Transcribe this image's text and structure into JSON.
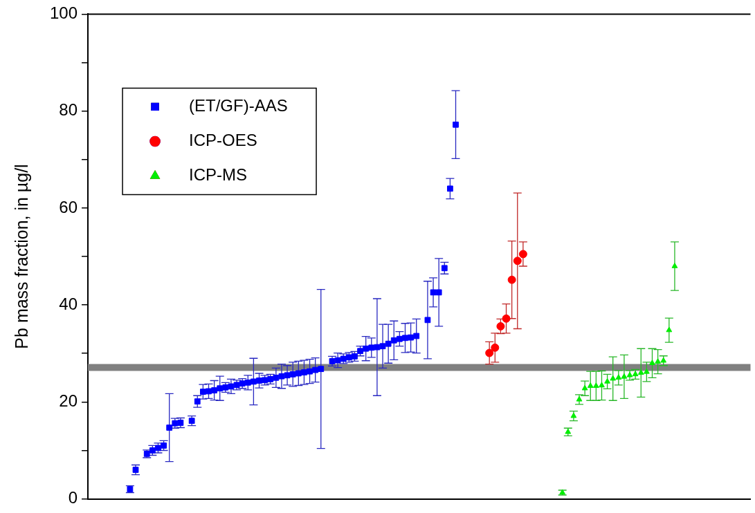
{
  "chart_data": {
    "type": "scatter",
    "ylabel": "Pb mass fraction, in µg/l",
    "categories": [
      null,
      null,
      null,
      null,
      null,
      null,
      null,
      null,
      null,
      null,
      null,
      null,
      null,
      null,
      null,
      null,
      null,
      null,
      null,
      null,
      null,
      null,
      null,
      null,
      null,
      null,
      null,
      null,
      null,
      null,
      null,
      null,
      null,
      null,
      null,
      null,
      null,
      null,
      null,
      null,
      null,
      null,
      null,
      null,
      null,
      null,
      null,
      null,
      null,
      null,
      null,
      null,
      null,
      null,
      null,
      null,
      null,
      null,
      null,
      null,
      null,
      null,
      null,
      null,
      null,
      null,
      null,
      null,
      null,
      null,
      null,
      null,
      null,
      null,
      null,
      null,
      null,
      null,
      null,
      null,
      null,
      null,
      null,
      null,
      null,
      null,
      null,
      null,
      null,
      null,
      null,
      null,
      null,
      null,
      null,
      null,
      null,
      null,
      null,
      null,
      null,
      null,
      null,
      null,
      null,
      null,
      null,
      null,
      null,
      null,
      null,
      null,
      null,
      null,
      null,
      null,
      null,
      null
    ],
    "series": [
      {
        "name": "(ET/GF)-AAS",
        "color": "#0000ff",
        "marker": "square",
        "values": [
          null,
          null,
          null,
          null,
          null,
          null,
          null,
          2.0,
          6.0,
          null,
          9.3,
          10.0,
          10.5,
          11.0,
          14.7,
          15.6,
          15.7,
          null,
          16.1,
          20.1,
          22.1,
          22.2,
          22.4,
          22.8,
          23.0,
          23.2,
          23.5,
          23.8,
          24.0,
          24.2,
          24.4,
          24.5,
          24.7,
          25.0,
          25.3,
          25.5,
          25.7,
          25.9,
          26.1,
          26.3,
          26.6,
          26.8,
          null,
          28.4,
          28.6,
          28.9,
          29.2,
          29.4,
          30.5,
          31.0,
          31.2,
          31.3,
          31.5,
          32.0,
          32.7,
          33.0,
          33.2,
          33.3,
          33.6,
          null,
          36.9,
          42.6,
          42.6,
          47.6,
          64.0,
          77.2,
          null,
          null,
          null,
          null,
          null,
          null,
          null,
          null,
          null,
          null,
          null,
          null,
          null,
          null,
          null,
          null,
          null,
          null,
          null,
          null,
          null,
          null,
          null,
          null,
          null,
          null,
          null,
          null,
          null,
          null,
          null,
          null,
          null,
          null,
          null,
          null,
          null,
          null,
          null,
          null,
          null,
          null,
          null,
          null,
          null,
          null,
          null,
          null,
          null,
          null,
          null,
          null
        ],
        "errors": [
          null,
          null,
          null,
          null,
          null,
          null,
          null,
          0.7,
          1,
          null,
          0.8,
          1,
          1,
          1,
          7,
          1,
          1,
          null,
          1,
          1.2,
          1.5,
          1.5,
          2,
          2.5,
          1,
          1.5,
          1,
          1,
          1.5,
          4.8,
          1.5,
          1,
          1,
          2,
          2.5,
          2,
          2.5,
          2.5,
          2.5,
          2.5,
          2.5,
          16.4,
          null,
          1,
          1.5,
          1,
          1,
          1,
          1,
          2.5,
          2,
          10,
          4.5,
          4,
          4,
          1.5,
          3,
          3,
          3.5,
          null,
          8,
          3,
          7,
          1.2,
          2.1,
          7,
          null,
          null,
          null,
          null,
          null,
          null,
          null,
          null,
          null,
          null,
          null,
          null,
          null,
          null,
          null,
          null,
          null,
          null,
          null,
          null,
          null,
          null,
          null,
          null,
          null,
          null,
          null,
          null,
          null,
          null,
          null,
          null,
          null,
          null,
          null,
          null,
          null,
          null,
          null,
          null,
          null,
          null,
          null,
          null,
          null,
          null,
          null,
          null,
          null,
          null,
          null,
          null
        ]
      },
      {
        "name": "ICP-OES",
        "color": "#ff0000",
        "marker": "circle",
        "values": [
          null,
          null,
          null,
          null,
          null,
          null,
          null,
          null,
          null,
          null,
          null,
          null,
          null,
          null,
          null,
          null,
          null,
          null,
          null,
          null,
          null,
          null,
          null,
          null,
          null,
          null,
          null,
          null,
          null,
          null,
          null,
          null,
          null,
          null,
          null,
          null,
          null,
          null,
          null,
          null,
          null,
          null,
          null,
          null,
          null,
          null,
          null,
          null,
          null,
          null,
          null,
          null,
          null,
          null,
          null,
          null,
          null,
          null,
          null,
          null,
          null,
          null,
          null,
          null,
          null,
          null,
          null,
          null,
          null,
          null,
          null,
          30.1,
          31.2,
          35.6,
          37.2,
          45.2,
          49.1,
          50.5,
          null,
          null,
          null,
          null,
          null,
          null,
          null,
          null,
          null,
          null,
          null,
          null,
          null,
          null,
          null,
          null,
          null,
          null,
          null,
          null,
          null,
          null,
          null,
          null,
          null,
          null,
          null,
          null,
          null,
          null,
          null,
          null,
          null,
          null,
          null,
          null,
          null,
          null,
          null,
          null
        ],
        "errors": [
          null,
          null,
          null,
          null,
          null,
          null,
          null,
          null,
          null,
          null,
          null,
          null,
          null,
          null,
          null,
          null,
          null,
          null,
          null,
          null,
          null,
          null,
          null,
          null,
          null,
          null,
          null,
          null,
          null,
          null,
          null,
          null,
          null,
          null,
          null,
          null,
          null,
          null,
          null,
          null,
          null,
          null,
          null,
          null,
          null,
          null,
          null,
          null,
          null,
          null,
          null,
          null,
          null,
          null,
          null,
          null,
          null,
          null,
          null,
          null,
          null,
          null,
          null,
          null,
          null,
          null,
          null,
          null,
          null,
          null,
          null,
          2.3,
          3,
          1.5,
          3,
          8,
          14,
          2.5,
          null,
          null,
          null,
          null,
          null,
          null,
          null,
          null,
          null,
          null,
          null,
          null,
          null,
          null,
          null,
          null,
          null,
          null,
          null,
          null,
          null,
          null,
          null,
          null,
          null,
          null,
          null,
          null,
          null,
          null,
          null,
          null,
          null,
          null,
          null,
          null,
          null,
          null,
          null,
          null
        ]
      },
      {
        "name": "ICP-MS",
        "color": "#00ee00",
        "marker": "triangle",
        "values": [
          null,
          null,
          null,
          null,
          null,
          null,
          null,
          null,
          null,
          null,
          null,
          null,
          null,
          null,
          null,
          null,
          null,
          null,
          null,
          null,
          null,
          null,
          null,
          null,
          null,
          null,
          null,
          null,
          null,
          null,
          null,
          null,
          null,
          null,
          null,
          null,
          null,
          null,
          null,
          null,
          null,
          null,
          null,
          null,
          null,
          null,
          null,
          null,
          null,
          null,
          null,
          null,
          null,
          null,
          null,
          null,
          null,
          null,
          null,
          null,
          null,
          null,
          null,
          null,
          null,
          null,
          null,
          null,
          null,
          null,
          null,
          null,
          null,
          null,
          null,
          null,
          null,
          null,
          null,
          null,
          null,
          null,
          null,
          null,
          1.3,
          13.8,
          17.1,
          20.5,
          22.8,
          23.3,
          23.3,
          23.4,
          24.2,
          24.8,
          25.0,
          25.2,
          25.5,
          25.7,
          26.0,
          26.2,
          28.0,
          28.3,
          28.5,
          34.8,
          48.0,
          null,
          null,
          null,
          null,
          null,
          null,
          null,
          null,
          null,
          null,
          null,
          null,
          null
        ],
        "errors": [
          null,
          null,
          null,
          null,
          null,
          null,
          null,
          null,
          null,
          null,
          null,
          null,
          null,
          null,
          null,
          null,
          null,
          null,
          null,
          null,
          null,
          null,
          null,
          null,
          null,
          null,
          null,
          null,
          null,
          null,
          null,
          null,
          null,
          null,
          null,
          null,
          null,
          null,
          null,
          null,
          null,
          null,
          null,
          null,
          null,
          null,
          null,
          null,
          null,
          null,
          null,
          null,
          null,
          null,
          null,
          null,
          null,
          null,
          null,
          null,
          null,
          null,
          null,
          null,
          null,
          null,
          null,
          null,
          null,
          null,
          null,
          null,
          null,
          null,
          null,
          null,
          null,
          null,
          null,
          null,
          null,
          null,
          null,
          null,
          0.5,
          0.8,
          1,
          1,
          1.5,
          3,
          3,
          3,
          1.5,
          4.5,
          1.5,
          4.5,
          1,
          1,
          5,
          2,
          3,
          2.5,
          1,
          2.5,
          5,
          null,
          null,
          null,
          null,
          null,
          null,
          null,
          null,
          null,
          null,
          null,
          null,
          null
        ]
      }
    ],
    "ylim": [
      0,
      100
    ],
    "yticks": [
      0,
      {
        "value": 10,
        "label": null
      },
      20,
      {
        "value": 30,
        "label": null
      },
      40,
      {
        "value": 50,
        "label": null
      },
      60,
      {
        "value": 70,
        "label": null
      },
      80,
      {
        "value": 90,
        "label": null
      },
      100
    ],
    "ref_lines": [
      {
        "axis": "y",
        "value": 27.1,
        "label": null,
        "color": "#808080"
      }
    ],
    "legend": "top left",
    "tick_labels": "y"
  }
}
